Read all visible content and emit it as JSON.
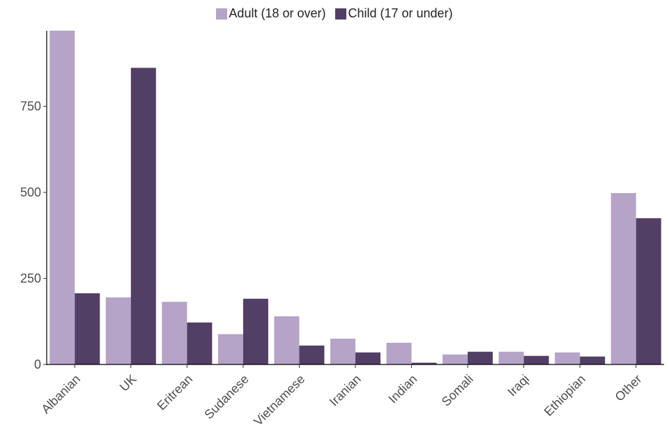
{
  "chart_data": {
    "type": "bar",
    "categories": [
      "Albanian",
      "UK",
      "Eritrean",
      "Sudanese",
      "Vietnamese",
      "Iranian",
      "Indian",
      "Somali",
      "Iraqi",
      "Ethiopian",
      "Other"
    ],
    "series": [
      {
        "name": "Adult (18 or over)",
        "color": "#b5a3c8",
        "values": [
          970,
          195,
          182,
          88,
          140,
          75,
          63,
          29,
          37,
          35,
          498
        ]
      },
      {
        "name": "Child (17 or under)",
        "color": "#523f66",
        "values": [
          207,
          862,
          122,
          191,
          55,
          35,
          5,
          37,
          25,
          23,
          425
        ]
      }
    ],
    "yticks": [
      0,
      250,
      500,
      750
    ],
    "ylim": [
      0,
      970
    ],
    "legend_position": "top-center",
    "grid": false,
    "title": "",
    "xlabel": "",
    "ylabel": ""
  }
}
